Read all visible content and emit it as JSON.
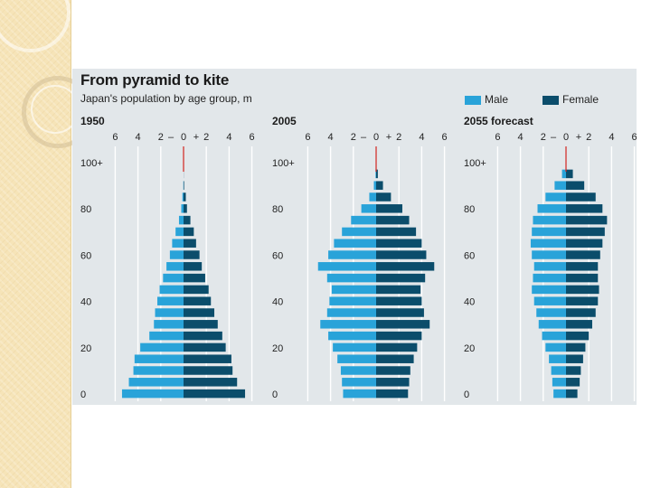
{
  "chart_data": {
    "type": "bar",
    "title": "From pyramid to kite",
    "subtitle": "Japan's population by age group, m",
    "legend": [
      {
        "label": "Male",
        "color": "#29a3d9"
      },
      {
        "label": "Female",
        "color": "#0b4d6b"
      }
    ],
    "x_ticks": [
      "6",
      "4",
      "2",
      "0",
      "2",
      "4",
      "6"
    ],
    "x_range": [
      -6,
      6
    ],
    "y_ticks": [
      "0",
      "20",
      "40",
      "60",
      "80",
      "100+"
    ],
    "y_tick_values": [
      0,
      20,
      40,
      60,
      80,
      100
    ],
    "age_groups": [
      "0-4",
      "5-9",
      "10-14",
      "15-19",
      "20-24",
      "25-29",
      "30-34",
      "35-39",
      "40-44",
      "45-49",
      "50-54",
      "55-59",
      "60-64",
      "65-69",
      "70-74",
      "75-79",
      "80-84",
      "85-89",
      "90-94",
      "95-99"
    ],
    "panels": [
      {
        "label": "1950",
        "male": [
          5.4,
          4.8,
          4.4,
          4.3,
          3.8,
          3.0,
          2.6,
          2.5,
          2.3,
          2.1,
          1.8,
          1.5,
          1.2,
          1.0,
          0.7,
          0.4,
          0.2,
          0.1,
          0.02,
          0.0
        ],
        "female": [
          5.4,
          4.7,
          4.3,
          4.2,
          3.7,
          3.4,
          3.0,
          2.7,
          2.4,
          2.2,
          1.9,
          1.6,
          1.4,
          1.1,
          0.9,
          0.6,
          0.3,
          0.2,
          0.05,
          0.01
        ]
      },
      {
        "label": "2005",
        "male": [
          2.9,
          3.0,
          3.1,
          3.4,
          3.8,
          4.2,
          4.9,
          4.3,
          4.1,
          3.9,
          4.3,
          5.1,
          4.2,
          3.7,
          3.0,
          2.2,
          1.3,
          0.6,
          0.2,
          0.05
        ],
        "female": [
          2.8,
          2.9,
          3.0,
          3.3,
          3.6,
          4.0,
          4.7,
          4.2,
          4.0,
          3.9,
          4.3,
          5.1,
          4.4,
          4.0,
          3.5,
          2.9,
          2.3,
          1.3,
          0.6,
          0.15
        ]
      },
      {
        "label": "2055 forecast",
        "male": [
          1.1,
          1.2,
          1.3,
          1.5,
          1.8,
          2.1,
          2.4,
          2.6,
          2.8,
          3.0,
          2.9,
          2.8,
          3.0,
          3.1,
          3.0,
          2.9,
          2.5,
          1.8,
          1.0,
          0.35
        ],
        "female": [
          1.0,
          1.2,
          1.3,
          1.5,
          1.7,
          2.0,
          2.3,
          2.6,
          2.8,
          2.9,
          2.8,
          2.8,
          3.0,
          3.2,
          3.4,
          3.6,
          3.2,
          2.6,
          1.6,
          0.6
        ]
      }
    ]
  }
}
